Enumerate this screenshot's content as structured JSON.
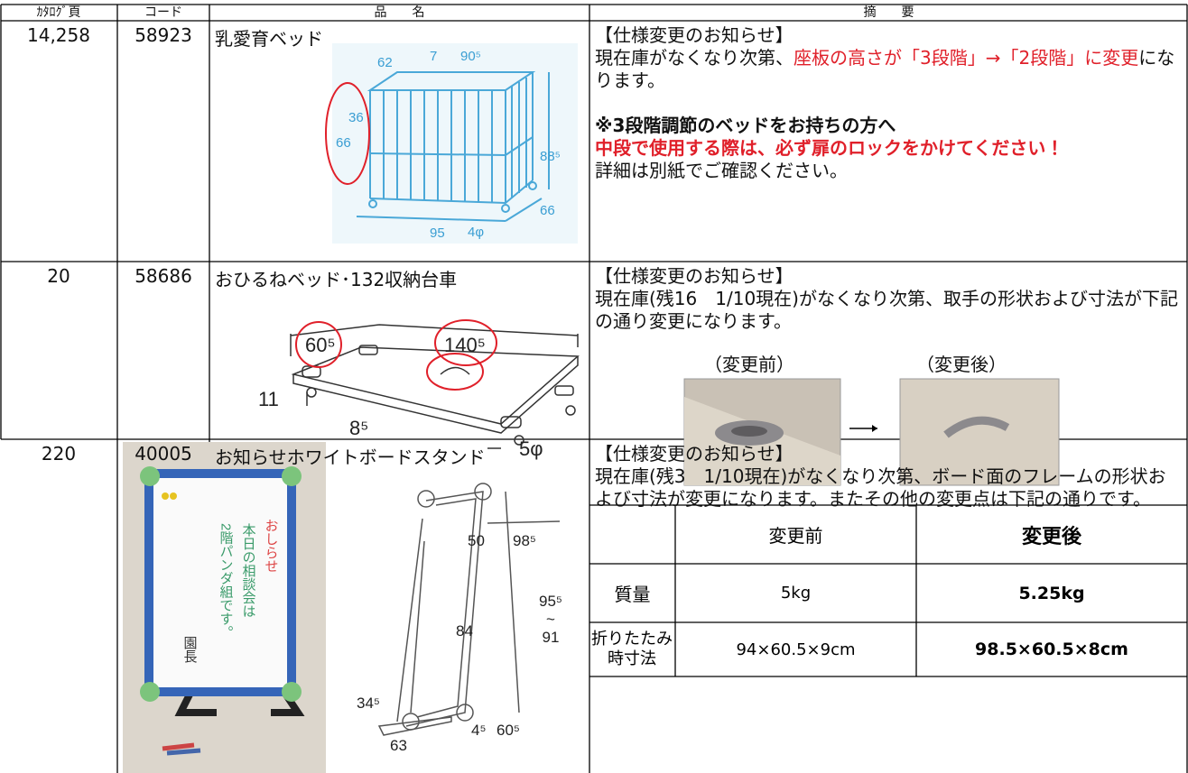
{
  "table": {
    "header": [
      "ｶﾀﾛｸﾞ頁",
      "コード",
      "品　　名",
      "摘　　要"
    ],
    "rows": [
      {
        "page": "14,258",
        "code": "58923",
        "name": "乳愛育ベッド",
        "notes": {
          "heading": "【仕様変更のお知らせ】",
          "line1_a": "現在庫がなくなり次第、",
          "line1_red": "座板の高さが「3段階」→「2段階」に変更",
          "line1_b": "になります。",
          "bold": "※3段階調節のベッドをお持ちの方へ",
          "red_bold": "中段で使用する際は、必ず扉のロックをかけてください！",
          "detail": "詳細は別紙でご確認ください。"
        },
        "figure_labels": [
          "62",
          "7",
          "90⁵",
          "36",
          "66",
          "88⁵",
          "66",
          "95",
          "4φ"
        ]
      },
      {
        "page": "20",
        "code": "58686",
        "name": "おひるねベッド･132収納台車",
        "notes": {
          "heading": "【仕様変更のお知らせ】",
          "body": "現在庫(残16　1/10現在)がなくなり次第、取手の形状および寸法が下記の通り変更になります。",
          "before": "（変更前）",
          "after": "（変更後）"
        },
        "figure_labels": [
          "60⁵",
          "140⁵",
          "11",
          "8⁵",
          "5φ"
        ]
      },
      {
        "page": "220",
        "code": "40005",
        "name": "お知らせホワイトボードスタンド",
        "notes": {
          "heading": "【仕様変更のお知らせ】",
          "body": "現在庫(残3　1/10現在)がなくなり次第、ボード面のフレームの形状および寸法が変更になります。またその他の変更点は下記の通りです。",
          "compare": {
            "header": [
              "変更前",
              "変更後"
            ],
            "rows": [
              [
                "質量",
                "5kg",
                "5.25kg"
              ],
              [
                "折りたたみ時寸法",
                "94×60.5×9cm",
                "98.5×60.5×8cm"
              ]
            ]
          }
        },
        "board_text": [
          "おしらせ",
          "本日の相談会は",
          "2階パンダ組です。",
          "園長"
        ],
        "figure_labels": [
          "50",
          "98⁵",
          "95⁵\n~\n91",
          "84",
          "34⁵",
          "63",
          "4⁵",
          "60⁵"
        ]
      }
    ]
  }
}
